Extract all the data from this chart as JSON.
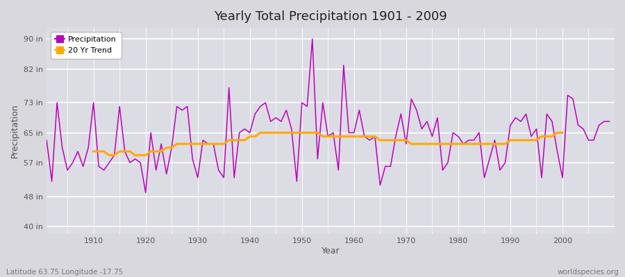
{
  "title": "Yearly Total Precipitation 1901 - 2009",
  "xlabel": "Year",
  "ylabel": "Precipitation",
  "yticks": [
    40,
    48,
    57,
    65,
    73,
    82,
    90
  ],
  "ytick_labels": [
    "40 in",
    "48 in",
    "57 in",
    "65 in",
    "73 in",
    "82 in",
    "90 in"
  ],
  "xlim": [
    1901,
    2010
  ],
  "ylim": [
    38,
    93
  ],
  "outer_bg": "#d8d8de",
  "plot_bg": "#dcdce4",
  "precip_color": "#bb00bb",
  "trend_color": "#ffaa00",
  "grid_color": "#ffffff",
  "years": [
    1901,
    1902,
    1903,
    1904,
    1905,
    1906,
    1907,
    1908,
    1909,
    1910,
    1911,
    1912,
    1913,
    1914,
    1915,
    1916,
    1917,
    1918,
    1919,
    1920,
    1921,
    1922,
    1923,
    1924,
    1925,
    1926,
    1927,
    1928,
    1929,
    1930,
    1931,
    1932,
    1933,
    1934,
    1935,
    1936,
    1937,
    1938,
    1939,
    1940,
    1941,
    1942,
    1943,
    1944,
    1945,
    1946,
    1947,
    1948,
    1949,
    1950,
    1951,
    1952,
    1953,
    1954,
    1955,
    1956,
    1957,
    1958,
    1959,
    1960,
    1961,
    1962,
    1963,
    1964,
    1965,
    1966,
    1967,
    1968,
    1969,
    1970,
    1971,
    1972,
    1973,
    1974,
    1975,
    1976,
    1977,
    1978,
    1979,
    1980,
    1981,
    1982,
    1983,
    1984,
    1985,
    1986,
    1987,
    1988,
    1989,
    1990,
    1991,
    1992,
    1993,
    1994,
    1995,
    1996,
    1997,
    1998,
    1999,
    2000,
    2001,
    2002,
    2003,
    2004,
    2005,
    2006,
    2007,
    2008,
    2009
  ],
  "precip": [
    63,
    52,
    73,
    61,
    55,
    57,
    60,
    56,
    61,
    73,
    56,
    55,
    57,
    59,
    72,
    60,
    57,
    58,
    57,
    49,
    65,
    55,
    62,
    54,
    61,
    72,
    71,
    72,
    58,
    53,
    63,
    62,
    62,
    55,
    53,
    77,
    53,
    65,
    66,
    65,
    70,
    72,
    73,
    68,
    69,
    68,
    71,
    66,
    52,
    73,
    72,
    90,
    58,
    73,
    64,
    65,
    55,
    83,
    65,
    65,
    71,
    64,
    63,
    64,
    51,
    56,
    56,
    64,
    70,
    62,
    74,
    71,
    66,
    68,
    64,
    69,
    55,
    57,
    65,
    64,
    62,
    63,
    63,
    65,
    53,
    58,
    63,
    55,
    57,
    67,
    69,
    68,
    70,
    64,
    66,
    53,
    70,
    68,
    60,
    53,
    75,
    74,
    67,
    66,
    63,
    63,
    67,
    68,
    68
  ],
  "trend": [
    null,
    null,
    null,
    null,
    null,
    null,
    null,
    null,
    null,
    60,
    60,
    60,
    59,
    59,
    60,
    60,
    60,
    59,
    59,
    59,
    60,
    60,
    60,
    61,
    61,
    62,
    62,
    62,
    62,
    62,
    62,
    62,
    62,
    62,
    62,
    63,
    63,
    63,
    63,
    64,
    64,
    65,
    65,
    65,
    65,
    65,
    65,
    65,
    65,
    65,
    65,
    65,
    65,
    64,
    64,
    64,
    64,
    64,
    64,
    64,
    64,
    64,
    64,
    64,
    63,
    63,
    63,
    63,
    63,
    63,
    62,
    62,
    62,
    62,
    62,
    62,
    62,
    62,
    62,
    62,
    62,
    62,
    62,
    62,
    62,
    62,
    62,
    62,
    62,
    63,
    63,
    63,
    63,
    63,
    63,
    64,
    64,
    64,
    65,
    65,
    null,
    null,
    null,
    null,
    null,
    null,
    null,
    null,
    null
  ],
  "footer_left": "Latitude 63.75 Longitude -17.75",
  "footer_right": "worldspecies.org"
}
